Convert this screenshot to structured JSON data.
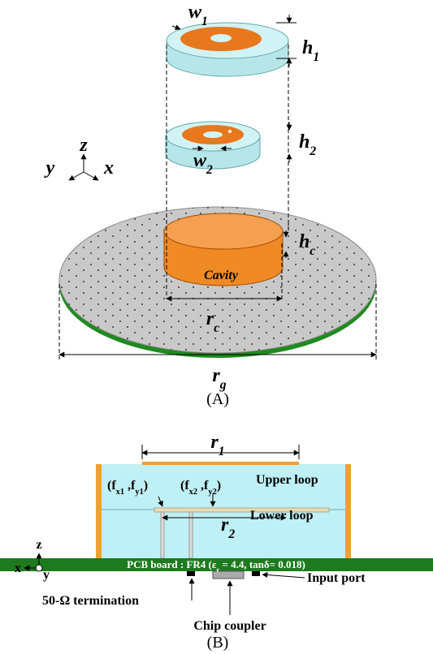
{
  "panel_a": {
    "w1": [
      {
        "text": "w"
      },
      {
        "sub": "1"
      }
    ],
    "h1": [
      {
        "text": "h"
      },
      {
        "sub": "1"
      }
    ],
    "h2": [
      {
        "text": "h"
      },
      {
        "sub": "2"
      }
    ],
    "w2": [
      {
        "text": "w"
      },
      {
        "sub": "2"
      }
    ],
    "axis_y": [
      {
        "text": "y"
      }
    ],
    "axis_z": [
      {
        "text": "z"
      }
    ],
    "axis_x": [
      {
        "text": "x"
      }
    ],
    "hc": [
      {
        "text": "h"
      },
      {
        "sub": "c"
      }
    ],
    "cavity": [
      {
        "text": "Cavity"
      }
    ],
    "rc": [
      {
        "text": "r"
      },
      {
        "sub": "c"
      }
    ],
    "rg": [
      {
        "text": "r"
      },
      {
        "sub": "g"
      }
    ],
    "caption": [
      {
        "text": "(A)"
      }
    ]
  },
  "panel_b": {
    "r1": [
      {
        "text": "r"
      },
      {
        "sub": "1"
      }
    ],
    "f1": [
      {
        "text": "(f"
      },
      {
        "sub": "x1"
      },
      {
        "text": " ,f"
      },
      {
        "sub": "y1"
      },
      {
        "text": ")"
      }
    ],
    "f2": [
      {
        "text": "(f"
      },
      {
        "sub": "x2"
      },
      {
        "text": " ,f"
      },
      {
        "sub": "y2"
      },
      {
        "text": ")"
      }
    ],
    "upper": [
      {
        "text": "Upper loop"
      }
    ],
    "lower": [
      {
        "text": "Lower loop"
      }
    ],
    "r2": [
      {
        "text": "r"
      },
      {
        "sub": "2"
      }
    ],
    "axis_z": [
      {
        "text": "z"
      }
    ],
    "axis_x": [
      {
        "text": "x"
      }
    ],
    "axis_y": [
      {
        "text": "y"
      }
    ],
    "pcb": [
      {
        "text": "PCB board : FR4 ("
      },
      {
        "text": "ε"
      },
      {
        "sub": "r"
      },
      {
        "text": " = 4.4, tanδ= 0.018)"
      }
    ],
    "termination": [
      {
        "text": "50-Ω termination"
      }
    ],
    "coupler": [
      {
        "text": "Chip coupler"
      }
    ],
    "input": [
      {
        "text": "Input port"
      }
    ],
    "caption": [
      {
        "text": "(B)"
      }
    ]
  }
}
